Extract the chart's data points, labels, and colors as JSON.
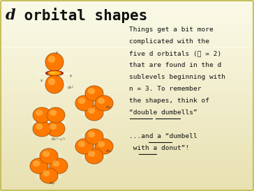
{
  "bg_color_top": "#FAFAE8",
  "bg_color_bottom": "#E8E0B0",
  "border_color": "#C8C060",
  "title_d": "d",
  "title_rest": " orbital shapes",
  "title_fontsize": 15,
  "body_lines": [
    "Things get a bit more",
    "complicated with the",
    "five d orbitals (ℓ = 2)",
    "that are found in the d",
    "sublevels beginning with",
    "n = 3. To remember",
    "the shapes, think of",
    "“double dumbells”"
  ],
  "body2_lines": [
    "...and a “dumbell",
    " with a donut”!"
  ],
  "text_fontsize": 6.8,
  "text_color": "#111111",
  "orbital_highlight": "#FFB020",
  "orbital_mid": "#FF7800",
  "orbital_dark": "#CC4400",
  "orbital_shadow": "#994400",
  "ring_colors": [
    "#CC3300",
    "#DD5500",
    "#EE7700",
    "#FF9900",
    "#FFAA00"
  ],
  "lobe_size": 0.048,
  "lobe_separation": 0.051
}
